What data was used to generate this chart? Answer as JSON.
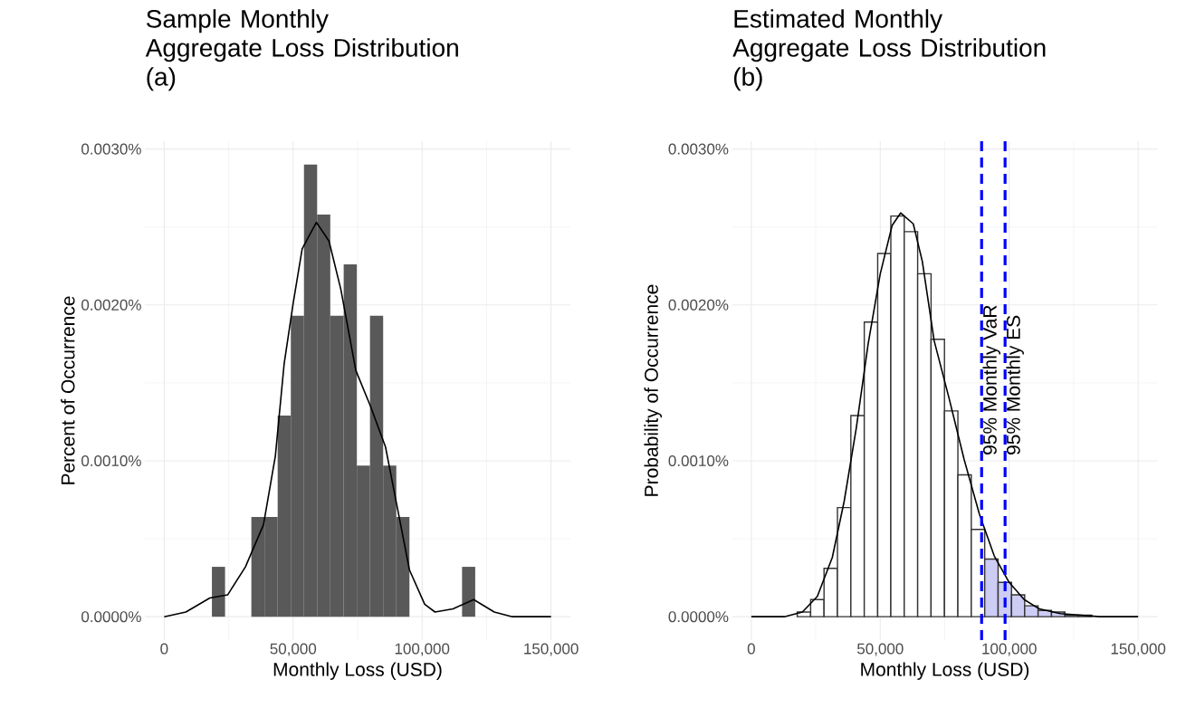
{
  "chart_data": [
    {
      "type": "histogram",
      "title": "Sample Monthly\nAggregate Loss Distribution\n(a)",
      "xlabel": "Monthly Loss (USD)",
      "ylabel": "Percent of Occurrence",
      "bins": [
        18500,
        23600,
        28700,
        33800,
        38900,
        44000,
        49100,
        54200,
        59300,
        64400,
        69600,
        74700,
        79800,
        84900,
        90000,
        95100,
        100200,
        105300,
        110400,
        115500,
        120600
      ],
      "values": [
        0.00032,
        0,
        0,
        0.00064,
        0.00064,
        0.00129,
        0.00193,
        0.0029,
        0.00258,
        0.00193,
        0.00226,
        0.00097,
        0.00193,
        0.00097,
        0.00064,
        0,
        0,
        0,
        0,
        0.00032
      ],
      "color": "#595959",
      "series": [
        {
          "type": "line",
          "color": "#000000",
          "x": [
            0,
            8400,
            17700,
            24600,
            31500,
            38500,
            43100,
            46500,
            50000,
            53500,
            59000,
            63900,
            68500,
            74300,
            80000,
            85800,
            90400,
            95100,
            101000,
            105000,
            112000,
            120000,
            128000,
            135000,
            150000
          ],
          "values": [
            0,
            3e-05,
            0.00012,
            0.00014,
            0.00032,
            0.00059,
            0.00103,
            0.00162,
            0.00201,
            0.00236,
            0.00253,
            0.00241,
            0.0021,
            0.00158,
            0.00135,
            0.00109,
            0.0007,
            0.0003,
            8e-05,
            3e-05,
            5e-05,
            0.00011,
            3e-05,
            0,
            0
          ]
        }
      ],
      "xlim": [
        -7500,
        157500
      ],
      "ylim": [
        -0.00015,
        0.00305
      ],
      "xticks": [
        0,
        {
          "value": 50000,
          "label": "50,000"
        },
        {
          "value": 100000,
          "label": "100,000"
        },
        {
          "value": 150000,
          "label": "150,000"
        }
      ],
      "yticks": [
        {
          "value": 0,
          "label": "0.0000%"
        },
        {
          "value": 0.001,
          "label": "0.0010%"
        },
        {
          "value": 0.002,
          "label": "0.0020%"
        },
        {
          "value": 0.003,
          "label": "0.0030%"
        }
      ],
      "grid": true
    },
    {
      "type": "histogram",
      "title": "Estimated Monthly\nAggregate Loss Distribution\n(b)",
      "xlabel": "Monthly Loss (USD)",
      "ylabel": "Probability of Occurrence",
      "bins": [
        17800,
        23000,
        28200,
        33400,
        38600,
        43800,
        49000,
        54100,
        59300,
        64500,
        69700,
        74900,
        80100,
        85300,
        90500,
        95700,
        100900,
        106000,
        111200,
        116400,
        121600,
        126800,
        132000
      ],
      "values": [
        3e-05,
        0.00011,
        0.00031,
        0.0007,
        0.00129,
        0.00189,
        0.00233,
        0.00257,
        0.00247,
        0.0022,
        0.00178,
        0.00132,
        0.00091,
        0.00056,
        0.00037,
        0.00022,
        0.00014,
        7e-05,
        4e-05,
        3e-05,
        1e-05,
        1e-05
      ],
      "colors": [
        "#ffffff",
        "#ffffff",
        "#ffffff",
        "#ffffff",
        "#ffffff",
        "#ffffff",
        "#ffffff",
        "#ffffff",
        "#ffffff",
        "#ffffff",
        "#ffffff",
        "#ffffff",
        "#ffffff",
        "#ffffff",
        "#ccccf5",
        "#ccccf5",
        "#ccccf5",
        "#ccccf5",
        "#ccccf5",
        "#ccccf5",
        "#ccccf5",
        "#ccccf5"
      ],
      "series": [
        {
          "type": "line",
          "color": "#000000",
          "x": [
            0,
            12800,
            19800,
            25600,
            31400,
            36000,
            40700,
            45300,
            50000,
            54600,
            57900,
            62800,
            66300,
            70900,
            76700,
            82500,
            88400,
            94200,
            100000,
            105800,
            111700,
            119800,
            135000,
            150000
          ],
          "values": [
            0,
            0,
            3e-05,
            0.00013,
            0.00038,
            0.00074,
            0.00121,
            0.00175,
            0.0022,
            0.00251,
            0.00259,
            0.00252,
            0.00228,
            0.00177,
            0.0014,
            0.00101,
            0.00066,
            0.00039,
            0.00022,
            0.00011,
            5e-05,
            2e-05,
            0,
            0
          ]
        }
      ],
      "ref_lines": [
        {
          "axis": "x",
          "value": 89300,
          "label": "95% Monthly VaR",
          "color": "#0000ff",
          "line_style": "dashed"
        },
        {
          "axis": "x",
          "value": 98400,
          "label": "95% Monthly ES",
          "color": "#0000ff",
          "line_style": "dashed"
        }
      ],
      "xlim": [
        -7500,
        157500
      ],
      "ylim": [
        -0.00015,
        0.00305
      ],
      "xticks": [
        0,
        {
          "value": 50000,
          "label": "50,000"
        },
        {
          "value": 100000,
          "label": "100,000"
        },
        {
          "value": 150000,
          "label": "150,000"
        }
      ],
      "yticks": [
        {
          "value": 0,
          "label": "0.0000%"
        },
        {
          "value": 0.001,
          "label": "0.0010%"
        },
        {
          "value": 0.002,
          "label": "0.0020%"
        },
        {
          "value": 0.003,
          "label": "0.0030%"
        }
      ],
      "grid": true
    }
  ]
}
